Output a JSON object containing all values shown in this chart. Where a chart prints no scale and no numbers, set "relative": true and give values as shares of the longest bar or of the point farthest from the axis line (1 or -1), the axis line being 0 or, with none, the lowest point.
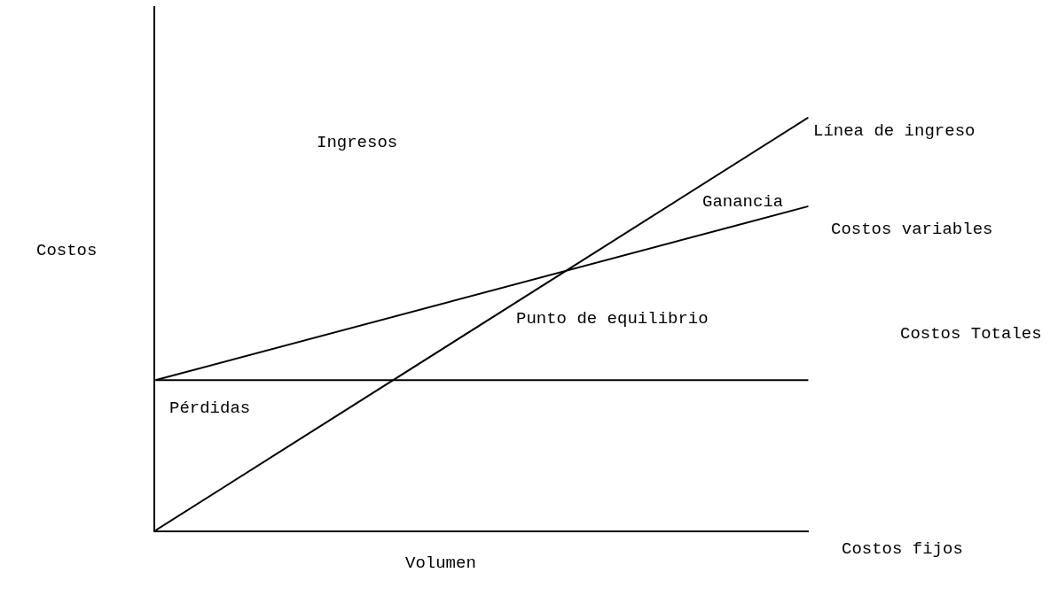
{
  "chart_data": {
    "type": "line",
    "relative": true,
    "categories": [
      null,
      null
    ],
    "series": [
      {
        "color": "#000000",
        "values": [
          0,
          1
        ]
      },
      {
        "color": "#000000",
        "values": [
          0.364,
          0.785
        ]
      },
      {
        "color": "#000000",
        "values": [
          0.364,
          0.364
        ]
      }
    ],
    "xlabel": "Volumen",
    "ylabel": "Costos",
    "marker": "none",
    "line_style": "solid",
    "annotations": [
      "Ingresos",
      "Línea de ingreso",
      "Ganancia",
      "Costos variables",
      "Punto de equilibrio",
      "Costos Totales",
      "Pérdidas",
      "Costos fijos"
    ]
  }
}
